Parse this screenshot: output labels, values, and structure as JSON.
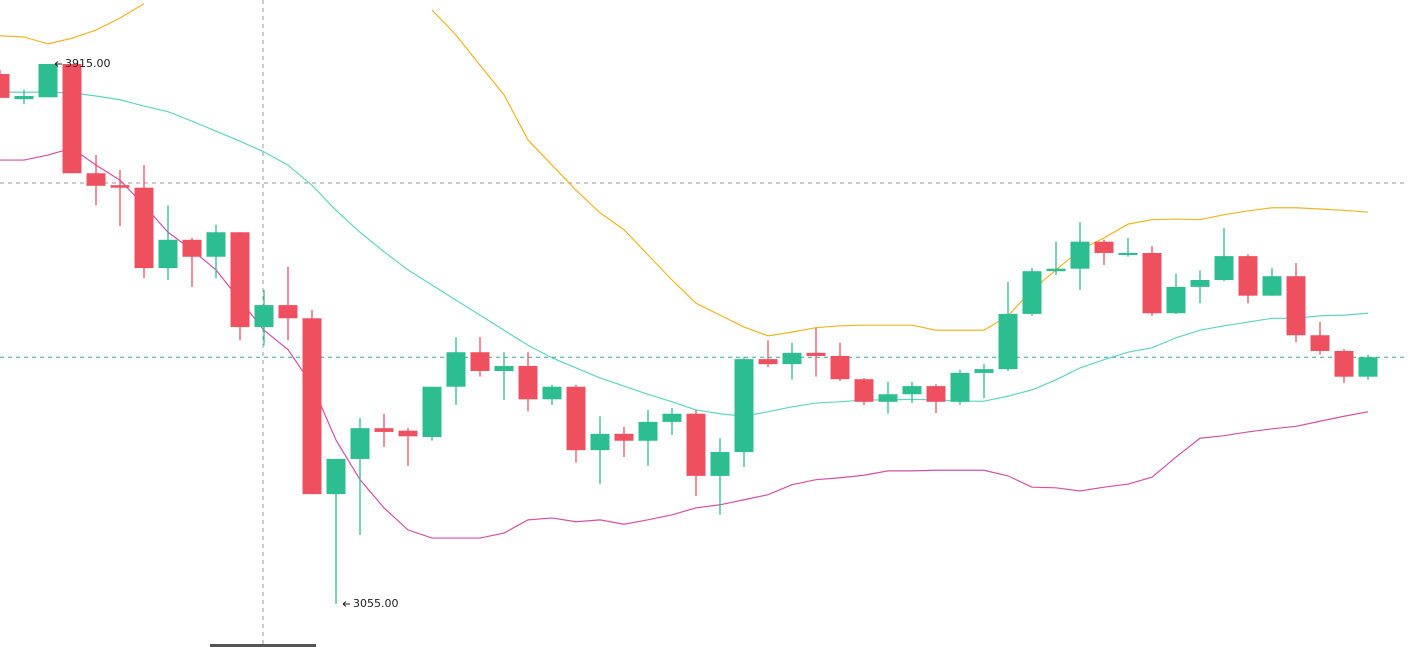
{
  "chart_data": {
    "type": "candlestick",
    "ylim": [
      2986.5,
      4016.9
    ],
    "up_color": "#2cbd91",
    "down_color": "#ef5060",
    "candles": {
      "open": [
        3899,
        3859,
        3862,
        3915,
        3741,
        3722,
        3718,
        3590,
        3635,
        3608,
        3647,
        3496,
        3531,
        3510,
        3230,
        3286,
        3335,
        3331,
        3321,
        3401,
        3456,
        3426,
        3434,
        3381,
        3401,
        3300,
        3326,
        3315,
        3345,
        3358,
        3259,
        3297,
        3445,
        3437,
        3455,
        3450,
        3413,
        3377,
        3389,
        3402,
        3377,
        3423,
        3429,
        3517,
        3585,
        3589,
        3632,
        3612,
        3614,
        3518,
        3560,
        3571,
        3609,
        3546,
        3577,
        3483,
        3458,
        3417
      ],
      "high": [
        3905,
        3874,
        3915,
        3915,
        3770,
        3746,
        3754,
        3690,
        3638,
        3659,
        3647,
        3555,
        3592,
        3523,
        3286,
        3351,
        3358,
        3335,
        3401,
        3480,
        3480,
        3456,
        3456,
        3404,
        3404,
        3354,
        3337,
        3364,
        3367,
        3364,
        3319,
        3448,
        3475,
        3471,
        3495,
        3471,
        3415,
        3409,
        3409,
        3405,
        3428,
        3437,
        3568,
        3590,
        3632,
        3663,
        3635,
        3638,
        3625,
        3581,
        3586,
        3654,
        3612,
        3590,
        3598,
        3504,
        3461,
        3452
      ],
      "low": [
        3861,
        3851,
        3862,
        3741,
        3690,
        3657,
        3574,
        3571,
        3560,
        3574,
        3475,
        3467,
        3475,
        3230,
        3055,
        3165,
        3305,
        3275,
        3315,
        3372,
        3417,
        3380,
        3362,
        3372,
        3280,
        3246,
        3289,
        3275,
        3324,
        3227,
        3197,
        3273,
        3432,
        3412,
        3417,
        3410,
        3372,
        3358,
        3375,
        3359,
        3372,
        3383,
        3426,
        3514,
        3579,
        3555,
        3595,
        3608,
        3514,
        3517,
        3534,
        3569,
        3534,
        3546,
        3472,
        3452,
        3407,
        3412
      ],
      "close": [
        3861,
        3864,
        3915,
        3741,
        3721,
        3718,
        3590,
        3635,
        3608,
        3647,
        3496,
        3531,
        3510,
        3230,
        3286,
        3335,
        3329,
        3322,
        3401,
        3456,
        3426,
        3434,
        3381,
        3401,
        3300,
        3326,
        3315,
        3345,
        3358,
        3259,
        3297,
        3445,
        3437,
        3455,
        3450,
        3413,
        3377,
        3389,
        3402,
        3377,
        3423,
        3429,
        3517,
        3585,
        3589,
        3632,
        3614,
        3614,
        3518,
        3560,
        3571,
        3609,
        3546,
        3577,
        3483,
        3458,
        3417,
        3448
      ]
    },
    "bands": {
      "upper": {
        "color": "#f5b324",
        "values": [
          3960,
          3958,
          3947,
          3956,
          3969,
          3988,
          4011,
          null,
          null,
          null,
          null,
          null,
          null,
          null,
          null,
          null,
          null,
          null,
          4001,
          3961,
          3913,
          3866,
          3794,
          3754,
          3714,
          3678,
          3651,
          3611,
          3571,
          3534,
          3515,
          3496,
          3482,
          3488,
          3495,
          3498,
          3499,
          3499,
          3499,
          3491,
          3491,
          3491,
          3514,
          3555,
          3587,
          3619,
          3638,
          3660,
          3667,
          3668,
          3667,
          3675,
          3681,
          3686,
          3686,
          3684,
          3682,
          3679
        ]
      },
      "middle": {
        "color": "#5dd6c6",
        "values": [
          3870,
          3870,
          3870,
          3869,
          3864,
          3858,
          3848,
          3839,
          3824,
          3808,
          3792,
          3775,
          3754,
          3722,
          3682,
          3647,
          3616,
          3587,
          3563,
          3539,
          3515,
          3491,
          3467,
          3447,
          3431,
          3415,
          3402,
          3389,
          3377,
          3364,
          3358,
          3354,
          3361,
          3369,
          3375,
          3377,
          3380,
          3380,
          3381,
          3380,
          3378,
          3378,
          3386,
          3396,
          3412,
          3431,
          3444,
          3456,
          3463,
          3479,
          3491,
          3498,
          3504,
          3510,
          3510,
          3514,
          3515,
          3518
        ]
      },
      "lower": {
        "color": "#d84fa8",
        "values": [
          3762,
          3762,
          3770,
          3781,
          3754,
          3730,
          3690,
          3647,
          3619,
          3587,
          3539,
          3491,
          3460,
          3404,
          3316,
          3253,
          3208,
          3173,
          3160,
          3160,
          3160,
          3168,
          3189,
          3192,
          3186,
          3189,
          3182,
          3189,
          3197,
          3208,
          3213,
          3221,
          3229,
          3245,
          3253,
          3256,
          3260,
          3267,
          3267,
          3268,
          3268,
          3268,
          3259,
          3241,
          3240,
          3235,
          3241,
          3246,
          3257,
          3289,
          3319,
          3323,
          3329,
          3334,
          3338,
          3346,
          3354,
          3361
        ]
      }
    },
    "max_marker": {
      "value": 3915,
      "label": "3915.00"
    },
    "min_marker": {
      "value": 3055,
      "label": "3055.00"
    }
  }
}
